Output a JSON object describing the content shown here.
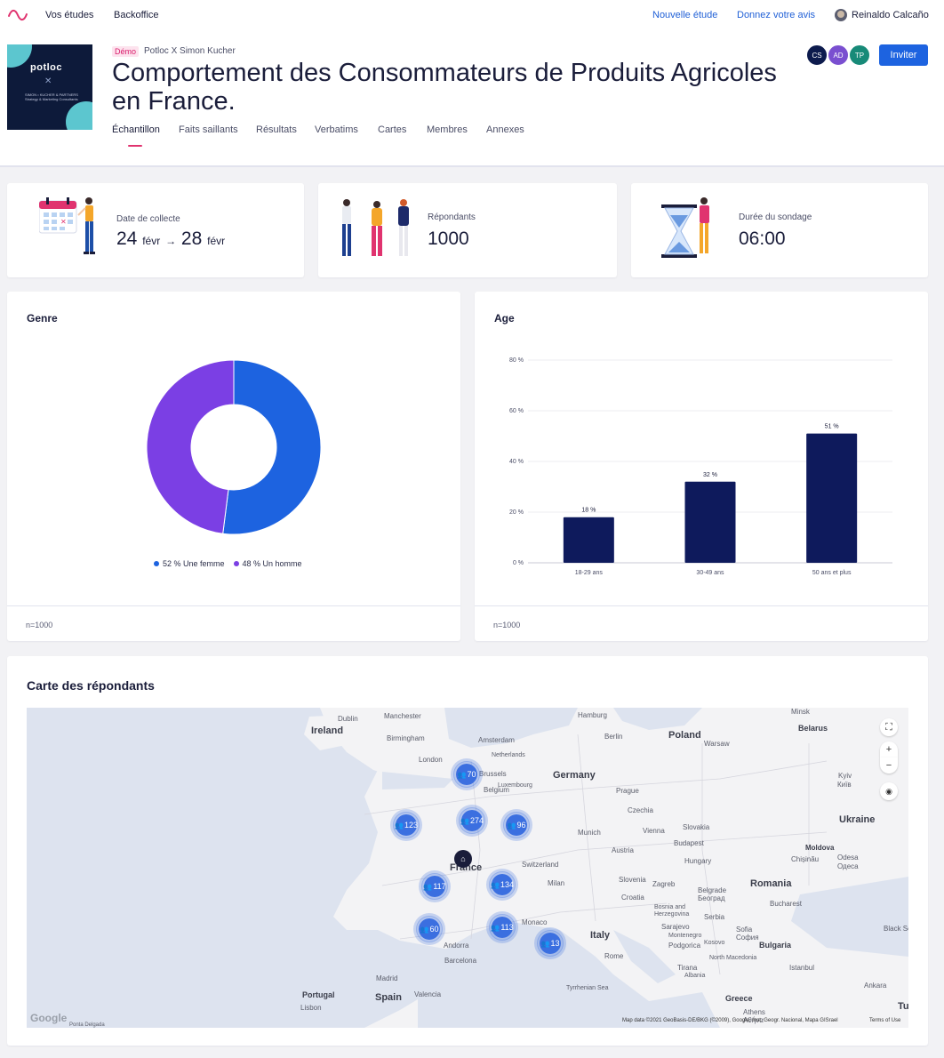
{
  "nav": {
    "links": [
      "Vos études",
      "Backoffice"
    ],
    "right_links": [
      "Nouvelle étude",
      "Donnez votre avis"
    ],
    "user_name": "Reinaldo Calcaño"
  },
  "header": {
    "badge": "Démo",
    "org": "Potloc X Simon Kucher",
    "title": "Comportement des Consommateurs de Produits Agricoles en France.",
    "cover_brand": "potloc",
    "cover_sub": "SIMON • KUCHER & PARTNERS Strategy & Marketing Consultants",
    "tabs": [
      "Échantillon",
      "Faits saillants",
      "Résultats",
      "Verbatims",
      "Cartes",
      "Membres",
      "Annexes"
    ],
    "members": [
      {
        "initials": "CS",
        "color": "#0d1b4d"
      },
      {
        "initials": "AD",
        "color": "#7a4fd0"
      },
      {
        "initials": "TP",
        "color": "#178a78"
      }
    ],
    "invite_label": "Inviter"
  },
  "stats": {
    "collect_label": "Date de collecte",
    "collect_start_day": "24",
    "collect_start_month": "févr",
    "arrow": "→",
    "collect_end_day": "28",
    "collect_end_month": "févr",
    "respondents_label": "Répondants",
    "respondents_value": "1000",
    "duration_label": "Durée du sondage",
    "duration_value": "06:00"
  },
  "genre": {
    "title": "Genre",
    "footer": "n=1000",
    "chart_data": {
      "type": "pie",
      "donut": true,
      "categories": [
        "Une femme",
        "Un homme"
      ],
      "values": [
        52,
        48
      ],
      "legend": [
        "52 % Une femme",
        "48 % Un homme"
      ],
      "colors": [
        "#1d63e0",
        "#7b3fe4"
      ]
    }
  },
  "age": {
    "title": "Age",
    "footer": "n=1000",
    "chart_data": {
      "type": "bar",
      "categories": [
        "18-29 ans",
        "30-49 ans",
        "50 ans et plus"
      ],
      "values": [
        18,
        32,
        51
      ],
      "value_labels": [
        "18 %",
        "32 %",
        "51 %"
      ],
      "yticks": [
        "0 %",
        "20 %",
        "40 %",
        "60 %",
        "80 %"
      ],
      "ylim": [
        0,
        80
      ],
      "grid": true,
      "color": "#0e1a5c"
    }
  },
  "map": {
    "title": "Carte des répondants",
    "countries": [
      "Ireland",
      "Poland",
      "Belarus",
      "Germany",
      "Ukraine",
      "France",
      "Italy",
      "Spain",
      "Romania",
      "Portugal",
      "Greece",
      "Tu",
      "Moldova",
      "Bulgaria",
      "Czechia",
      "Slovakia",
      "Austria",
      "Hungary",
      "Switzerland",
      "Croatia",
      "Serbia",
      "Slovenia",
      "Belgium",
      "Netherlands",
      "Luxembourg",
      "Bosnia and Herzegovina",
      "Montenegro",
      "Kosovo",
      "North Macedonia",
      "Albania"
    ],
    "cities": [
      "Dublin",
      "Manchester",
      "Hamburg",
      "Minsk",
      "Birmingham",
      "Amsterdam",
      "Berlin",
      "Warsaw",
      "London",
      "Brussels",
      "Kyiv",
      "Київ",
      "Prague",
      "Munich",
      "Vienna",
      "Budapest",
      "Chișinău",
      "Odesa",
      "Одеса",
      "Milan",
      "Zagreb",
      "Belgrade",
      "Београд",
      "Bucharest",
      "Sarajevo",
      "Monaco",
      "Sofia",
      "София",
      "Podgorica",
      "Rome",
      "Tirana",
      "Istanbul",
      "Madrid",
      "Barcelona",
      "Andorra",
      "Valencia",
      "Lisbon",
      "Athens",
      "Αθήνα",
      "Ankara",
      "Black Se",
      "Tyrrhenian Sea",
      "Ponta Delgada"
    ],
    "clusters": [
      {
        "label": "70"
      },
      {
        "label": "274"
      },
      {
        "label": "123"
      },
      {
        "label": "96"
      },
      {
        "label": "117"
      },
      {
        "label": "134"
      },
      {
        "label": "60"
      },
      {
        "label": "113"
      },
      {
        "label": "13"
      }
    ],
    "attribution": "Map data ©2021 GeoBasis-DE/BKG (©2009), Google, Inst. Geogr. Nacional, Mapa GISrael",
    "terms": "Terms of Use",
    "google": "Google",
    "controls": [
      "⛶",
      "+",
      "−",
      "◉"
    ]
  }
}
